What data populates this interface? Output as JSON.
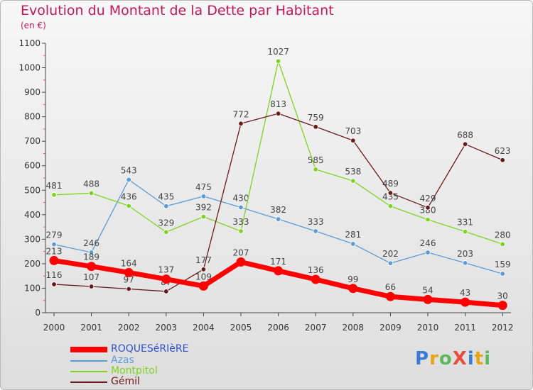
{
  "title": "Evolution du Montant de la Dette par Habitant",
  "subtitle": "(en €)",
  "logo": "ProXiti",
  "chart_data": {
    "type": "line",
    "title": "Evolution du Montant de la Dette par Habitant",
    "ylabel": "(en €)",
    "xlabel": "",
    "x": [
      "2000",
      "2001",
      "2002",
      "2003",
      "2004",
      "2005",
      "2006",
      "2007",
      "2008",
      "2009",
      "2010",
      "2011",
      "2012"
    ],
    "ylim": [
      0,
      1100
    ],
    "yticks": [
      0,
      100,
      200,
      300,
      400,
      500,
      600,
      700,
      800,
      900,
      1000,
      1100
    ],
    "grid": false,
    "legend_position": "bottom-left",
    "series": [
      {
        "name": "ROQUESéRIèRE",
        "color": "#ff0000",
        "values": [
          213,
          189,
          164,
          137,
          109,
          207,
          171,
          136,
          99,
          66,
          54,
          43,
          30
        ]
      },
      {
        "name": "Azas",
        "color": "#5b9bd5",
        "values": [
          279,
          246,
          543,
          435,
          475,
          430,
          382,
          333,
          281,
          202,
          246,
          203,
          159
        ]
      },
      {
        "name": "Montpitol",
        "color": "#7ed321",
        "values": [
          481,
          488,
          436,
          329,
          392,
          333,
          1027,
          585,
          538,
          435,
          380,
          331,
          280
        ]
      },
      {
        "name": "Gémil",
        "color": "#6b1a1a",
        "values": [
          116,
          107,
          97,
          87,
          177,
          772,
          813,
          759,
          703,
          489,
          429,
          688,
          623
        ]
      }
    ]
  }
}
